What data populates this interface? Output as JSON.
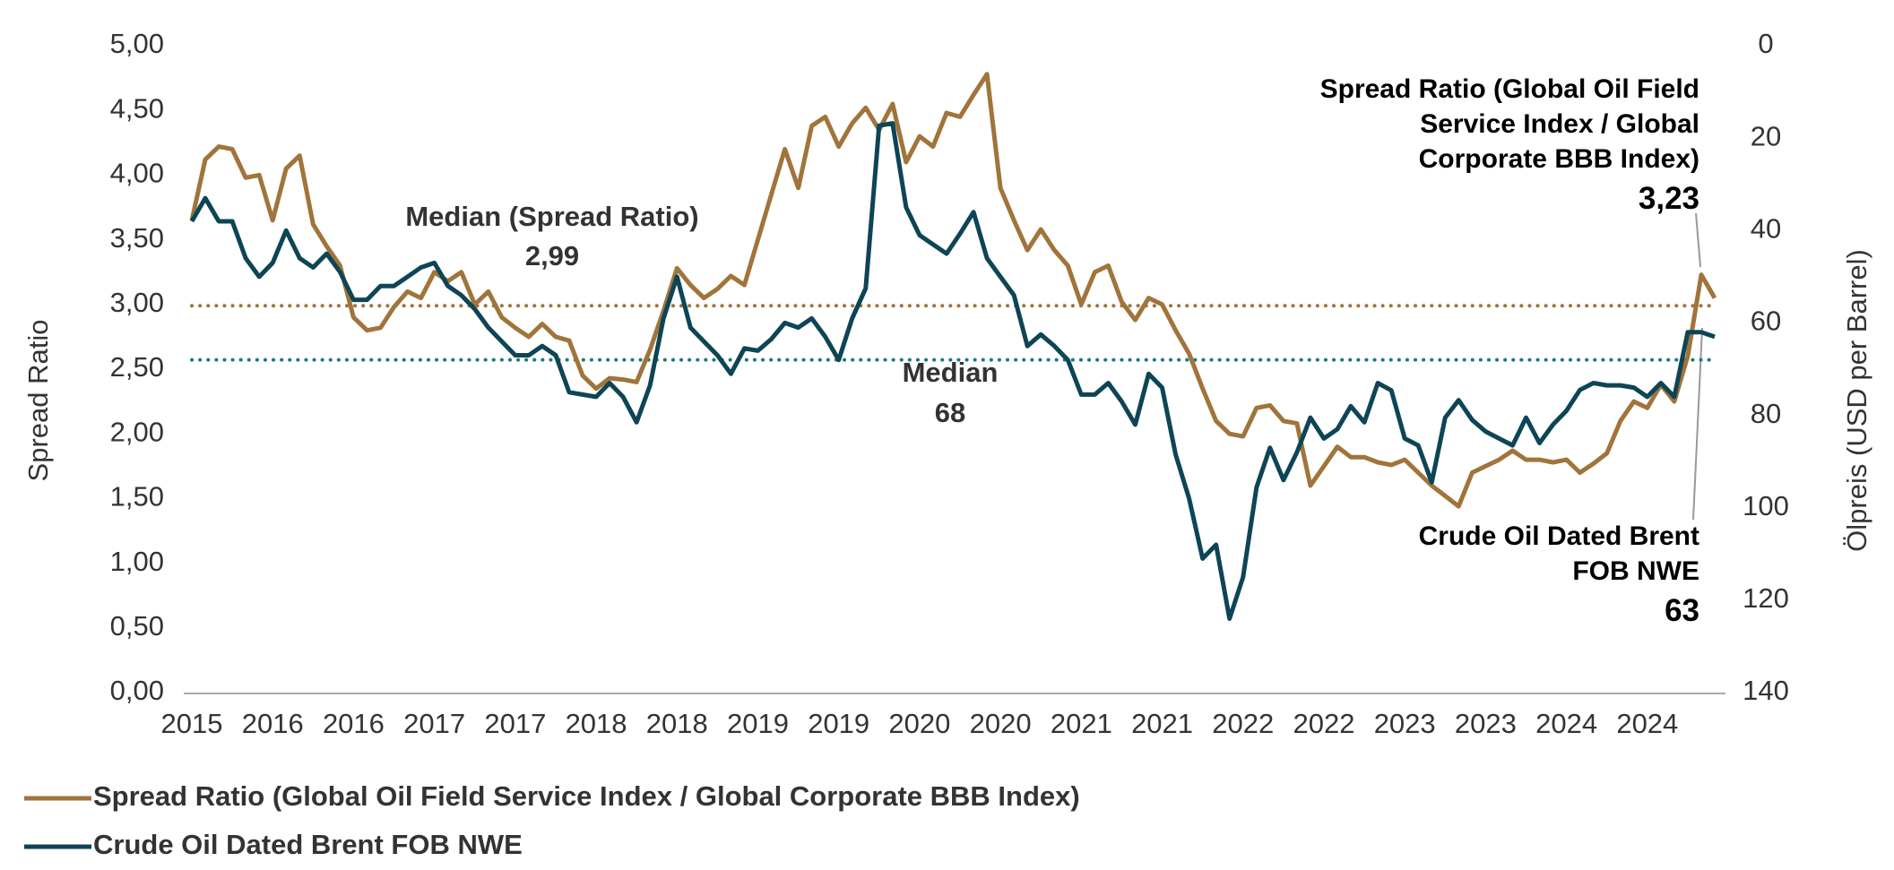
{
  "chart_data": {
    "type": "line",
    "ylabel": "Spread Ratio",
    "y2label": "Ölpreis (USD per Barrel)",
    "categories": [
      "2015",
      null,
      null,
      null,
      null,
      null,
      "2016",
      null,
      null,
      null,
      null,
      null,
      "2016",
      null,
      null,
      null,
      null,
      null,
      "2017",
      null,
      null,
      null,
      null,
      null,
      "2017",
      null,
      null,
      null,
      null,
      null,
      "2018",
      null,
      null,
      null,
      null,
      null,
      "2018",
      null,
      null,
      null,
      null,
      null,
      "2019",
      null,
      null,
      null,
      null,
      null,
      "2019",
      null,
      null,
      null,
      null,
      null,
      "2020",
      null,
      null,
      null,
      null,
      null,
      "2020",
      null,
      null,
      null,
      null,
      null,
      "2021",
      null,
      null,
      null,
      null,
      null,
      "2021",
      null,
      null,
      null,
      null,
      null,
      "2022",
      null,
      null,
      null,
      null,
      null,
      "2022",
      null,
      null,
      null,
      null,
      null,
      "2023",
      null,
      null,
      null,
      null,
      null,
      "2023",
      null,
      null,
      null,
      null,
      null,
      "2024",
      null,
      null,
      null,
      null,
      null,
      "2024",
      null,
      null,
      null,
      null,
      null
    ],
    "series": [
      {
        "name": "Spread Ratio (Global Oil Field Service Index / Global Corporate BBB Index)",
        "color": "#a0743a",
        "axis": "y",
        "values": [
          3.65,
          4.12,
          4.22,
          4.2,
          3.98,
          4.0,
          3.65,
          4.05,
          4.15,
          3.62,
          3.45,
          3.3,
          2.9,
          2.8,
          2.82,
          2.98,
          3.1,
          3.05,
          3.25,
          3.18,
          3.25,
          3.0,
          3.1,
          2.9,
          2.82,
          2.75,
          2.85,
          2.75,
          2.72,
          2.45,
          2.35,
          2.43,
          2.42,
          2.4,
          2.65,
          2.95,
          3.28,
          3.15,
          3.05,
          3.12,
          3.22,
          3.15,
          3.5,
          3.85,
          4.2,
          3.9,
          4.38,
          4.45,
          4.22,
          4.4,
          4.52,
          4.35,
          4.55,
          4.1,
          4.3,
          4.22,
          4.48,
          4.45,
          4.62,
          4.78,
          3.9,
          3.65,
          3.42,
          3.58,
          3.42,
          3.3,
          3.0,
          3.25,
          3.3,
          3.02,
          2.88,
          3.05,
          3.0,
          2.8,
          2.62,
          2.35,
          2.1,
          2.0,
          1.98,
          2.2,
          2.22,
          2.1,
          2.08,
          1.6,
          1.75,
          1.9,
          1.82,
          1.82,
          1.78,
          1.76,
          1.8,
          1.7,
          1.6,
          1.52,
          1.44,
          1.7,
          1.75,
          1.8,
          1.87,
          1.8,
          1.8,
          1.78,
          1.8,
          1.7,
          1.77,
          1.85,
          2.1,
          2.25,
          2.2,
          2.38,
          2.25,
          2.6,
          3.23,
          3.05
        ],
        "value_labels": [
          null,
          null,
          null,
          null,
          null,
          null,
          null,
          null,
          null,
          null,
          null,
          null,
          null,
          null,
          null,
          null,
          null,
          null,
          null,
          null,
          null,
          null,
          null,
          null,
          null,
          null,
          null,
          null,
          null,
          null,
          null,
          null,
          null,
          null,
          null,
          null,
          null,
          null,
          null,
          null,
          null,
          null,
          null,
          null,
          null,
          null,
          null,
          null,
          null,
          null,
          null,
          null,
          null,
          null,
          null,
          null,
          null,
          null,
          null,
          null,
          null,
          null,
          null,
          null,
          null,
          null,
          null,
          null,
          null,
          null,
          null,
          null,
          null,
          null,
          null,
          null,
          null,
          null,
          null,
          null,
          null,
          null,
          null,
          null,
          null,
          null,
          null,
          null,
          null,
          null,
          null,
          null,
          null,
          null,
          null,
          null,
          null,
          null,
          null,
          null,
          null,
          null,
          null,
          null,
          null,
          null,
          null,
          null,
          null,
          null,
          null,
          null,
          "3,23",
          null
        ]
      },
      {
        "name": "Crude Oil Dated Brent FOB NWE",
        "color": "#0d4556",
        "axis": "y2",
        "values": [
          38,
          33,
          38,
          38,
          46,
          50,
          47,
          40,
          46,
          48,
          45,
          49,
          55,
          55,
          52,
          52,
          50,
          48,
          47,
          52,
          54,
          57,
          61,
          64,
          67,
          67,
          65,
          67,
          75,
          75.5,
          76,
          73,
          76,
          81.5,
          73.5,
          59,
          50,
          61,
          64,
          67,
          71,
          65.5,
          66,
          63.5,
          60,
          61,
          59,
          63,
          68,
          59,
          52.5,
          17.3,
          16.8,
          35,
          41,
          43,
          45,
          40.7,
          36,
          46,
          50,
          54,
          65,
          62.5,
          65,
          68,
          75.5,
          75.5,
          73,
          77,
          82,
          71,
          74,
          88.5,
          98,
          111,
          108,
          124,
          115,
          95.6,
          87,
          94,
          88,
          80.5,
          85,
          83,
          78,
          81.5,
          73,
          74.6,
          85,
          86.5,
          94.5,
          80.5,
          76.7,
          81,
          83.5,
          85,
          86.5,
          80.5,
          86,
          82,
          79,
          74.5,
          73,
          73.5,
          73.5,
          74,
          76,
          73,
          76,
          62,
          62,
          63
        ]
      }
    ],
    "medians": [
      {
        "name": "Median (Spread Ratio)",
        "value": 2.99,
        "label": "2,99",
        "axis": "y",
        "color": "#a0743a"
      },
      {
        "name": "Median",
        "value": 68,
        "label": "68",
        "axis": "y2",
        "color": "#1f7a7c"
      }
    ],
    "ylim": [
      0,
      5
    ],
    "yticks": [
      {
        "value": 0,
        "label": "0,00"
      },
      {
        "value": 0.5,
        "label": "0,50"
      },
      {
        "value": 1,
        "label": "1,00"
      },
      {
        "value": 1.5,
        "label": "1,50"
      },
      {
        "value": 2,
        "label": "2,00"
      },
      {
        "value": 2.5,
        "label": "2,50"
      },
      {
        "value": 3,
        "label": "3,00"
      },
      {
        "value": 3.5,
        "label": "3,50"
      },
      {
        "value": 4,
        "label": "4,00"
      },
      {
        "value": 4.5,
        "label": "4,50"
      },
      {
        "value": 5,
        "label": "5,00"
      }
    ],
    "y2lim": [
      0,
      140
    ],
    "y2_inverted": true,
    "y2ticks": [
      0,
      20,
      40,
      60,
      80,
      100,
      120,
      140
    ],
    "grid": false,
    "legend": "bottom-left"
  }
}
